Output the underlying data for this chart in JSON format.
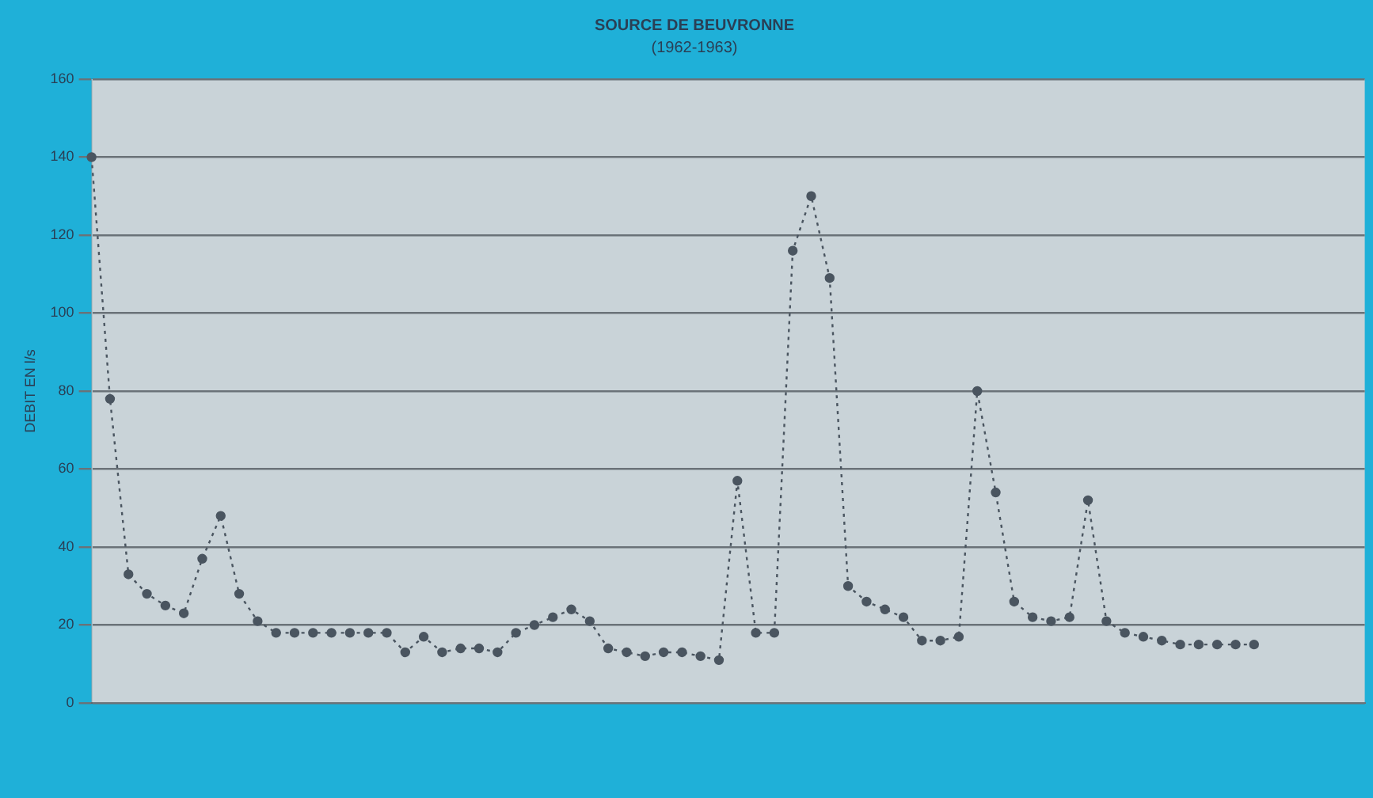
{
  "chart_data": {
    "type": "line",
    "title": "SOURCE DE BEUVRONNE",
    "subtitle": "(1962-1963)",
    "ylabel": "DEBIT EN l/s",
    "categories": [
      null,
      null,
      null,
      null,
      null,
      null,
      null,
      null,
      null,
      null,
      null,
      null,
      null,
      null,
      null,
      null,
      null,
      null,
      null,
      null,
      null,
      null,
      null,
      null,
      null,
      null,
      null,
      null,
      null,
      null,
      null,
      null,
      null,
      null,
      null,
      null,
      null,
      null,
      null,
      null,
      null,
      null,
      null,
      null,
      null,
      null,
      null,
      null,
      null,
      null,
      null,
      null,
      null,
      null,
      null,
      null,
      null,
      null,
      null,
      null,
      null,
      null,
      null,
      null,
      null,
      null,
      null,
      null,
      null,
      null
    ],
    "series": [
      {
        "color": "#4a5560",
        "values": [
          140,
          78,
          33,
          28,
          25,
          23,
          37,
          48,
          28,
          21,
          18,
          18,
          18,
          18,
          18,
          18,
          18,
          13,
          17,
          13,
          14,
          14,
          13,
          18,
          20,
          22,
          24,
          21,
          14,
          13,
          12,
          13,
          13,
          12,
          11,
          57,
          18,
          18,
          116,
          130,
          109,
          30,
          26,
          24,
          22,
          16,
          16,
          17,
          80,
          54,
          26,
          22,
          21,
          22,
          52,
          21,
          18,
          17,
          16,
          15,
          15,
          15,
          15,
          15,
          null,
          null,
          null,
          null,
          null,
          null
        ]
      }
    ],
    "ylim": [
      0,
      160
    ],
    "yticks": [
      0,
      20,
      40,
      60,
      80,
      100,
      120,
      140,
      160
    ],
    "grid": "y",
    "marker": "circle",
    "line_style": "dotted",
    "legend": false
  }
}
